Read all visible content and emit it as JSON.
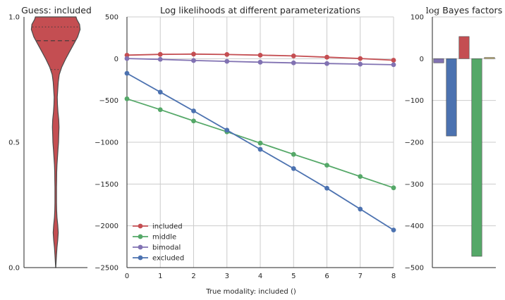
{
  "colors": {
    "included": "#c44e52",
    "middle": "#55a868",
    "bimodal": "#8172b2",
    "excluded": "#4c72b0",
    "fifth": "#ccb974",
    "grid": "#cccccc",
    "axis": "#262626"
  },
  "chart_data": [
    {
      "type": "violin",
      "title": "Guess: included",
      "ylim": [
        0.0,
        1.0
      ],
      "yticks": [
        "0.0",
        "0.5",
        "1.0"
      ],
      "ytick_values": [
        0.0,
        0.5,
        1.0
      ],
      "fill_color": "#c44e52",
      "density_profile": {
        "y": [
          0.0,
          0.02,
          0.05,
          0.08,
          0.11,
          0.14,
          0.17,
          0.2,
          0.23,
          0.26,
          0.29,
          0.32,
          0.35,
          0.38,
          0.41,
          0.44,
          0.47,
          0.5,
          0.53,
          0.56,
          0.59,
          0.62,
          0.65,
          0.68,
          0.71,
          0.74,
          0.77,
          0.8,
          0.83,
          0.86,
          0.89,
          0.92,
          0.95,
          0.97,
          0.99,
          1.0
        ],
        "half_width": [
          0.004,
          0.015,
          0.03,
          0.05,
          0.08,
          0.1,
          0.08,
          0.05,
          0.035,
          0.03,
          0.03,
          0.03,
          0.035,
          0.04,
          0.05,
          0.07,
          0.09,
          0.11,
          0.12,
          0.13,
          0.12,
          0.09,
          0.07,
          0.06,
          0.08,
          0.1,
          0.14,
          0.24,
          0.38,
          0.54,
          0.7,
          0.86,
          0.96,
          0.94,
          0.83,
          0.8
        ]
      },
      "quartiles": {
        "q1": 0.79,
        "median": 0.905,
        "q3": 0.96
      }
    },
    {
      "type": "line",
      "title": "Log likelihoods at different parameterizations",
      "xlabel": "True modality: included ()",
      "ylabel": "",
      "xlim": [
        0,
        8
      ],
      "ylim": [
        -2500,
        500
      ],
      "x": [
        0,
        1,
        2,
        3,
        4,
        5,
        6,
        7,
        8
      ],
      "xticks": [
        "0",
        "1",
        "2",
        "3",
        "4",
        "5",
        "6",
        "7",
        "8"
      ],
      "yticks": [
        "500",
        "0",
        "−500",
        "−1000",
        "−1500",
        "−2000",
        "−2500"
      ],
      "ytick_values": [
        500,
        0,
        -500,
        -1000,
        -1500,
        -2000,
        -2500
      ],
      "grid": true,
      "legend_position": "lower-left",
      "series": [
        {
          "name": "included",
          "key": "included",
          "values": [
            42,
            52,
            55,
            50,
            42,
            33,
            18,
            2,
            -18
          ]
        },
        {
          "name": "middle",
          "key": "middle",
          "values": [
            -480,
            -610,
            -745,
            -875,
            -1010,
            -1145,
            -1275,
            -1410,
            -1545
          ]
        },
        {
          "name": "bimodal",
          "key": "bimodal",
          "values": [
            2,
            -8,
            -22,
            -32,
            -42,
            -50,
            -58,
            -65,
            -72
          ]
        },
        {
          "name": "excluded",
          "key": "excluded",
          "values": [
            -175,
            -400,
            -625,
            -855,
            -1085,
            -1315,
            -1550,
            -1800,
            -2050
          ]
        }
      ]
    },
    {
      "type": "bar",
      "title": "log Bayes factors",
      "title_prefix": "log",
      "title_rest": " Bayes factors",
      "ylim": [
        -500,
        100
      ],
      "yticks": [
        "100",
        "0",
        "−100",
        "−200",
        "−300",
        "−400",
        "−500"
      ],
      "ytick_values": [
        100,
        0,
        -100,
        -200,
        -300,
        -400,
        -500
      ],
      "grid": true,
      "bars": [
        {
          "key": "bimodal",
          "value": -10
        },
        {
          "key": "excluded",
          "value": -185
        },
        {
          "key": "included",
          "value": 53
        },
        {
          "key": "middle",
          "value": -473
        },
        {
          "key": "fifth",
          "value": 3
        }
      ]
    }
  ]
}
